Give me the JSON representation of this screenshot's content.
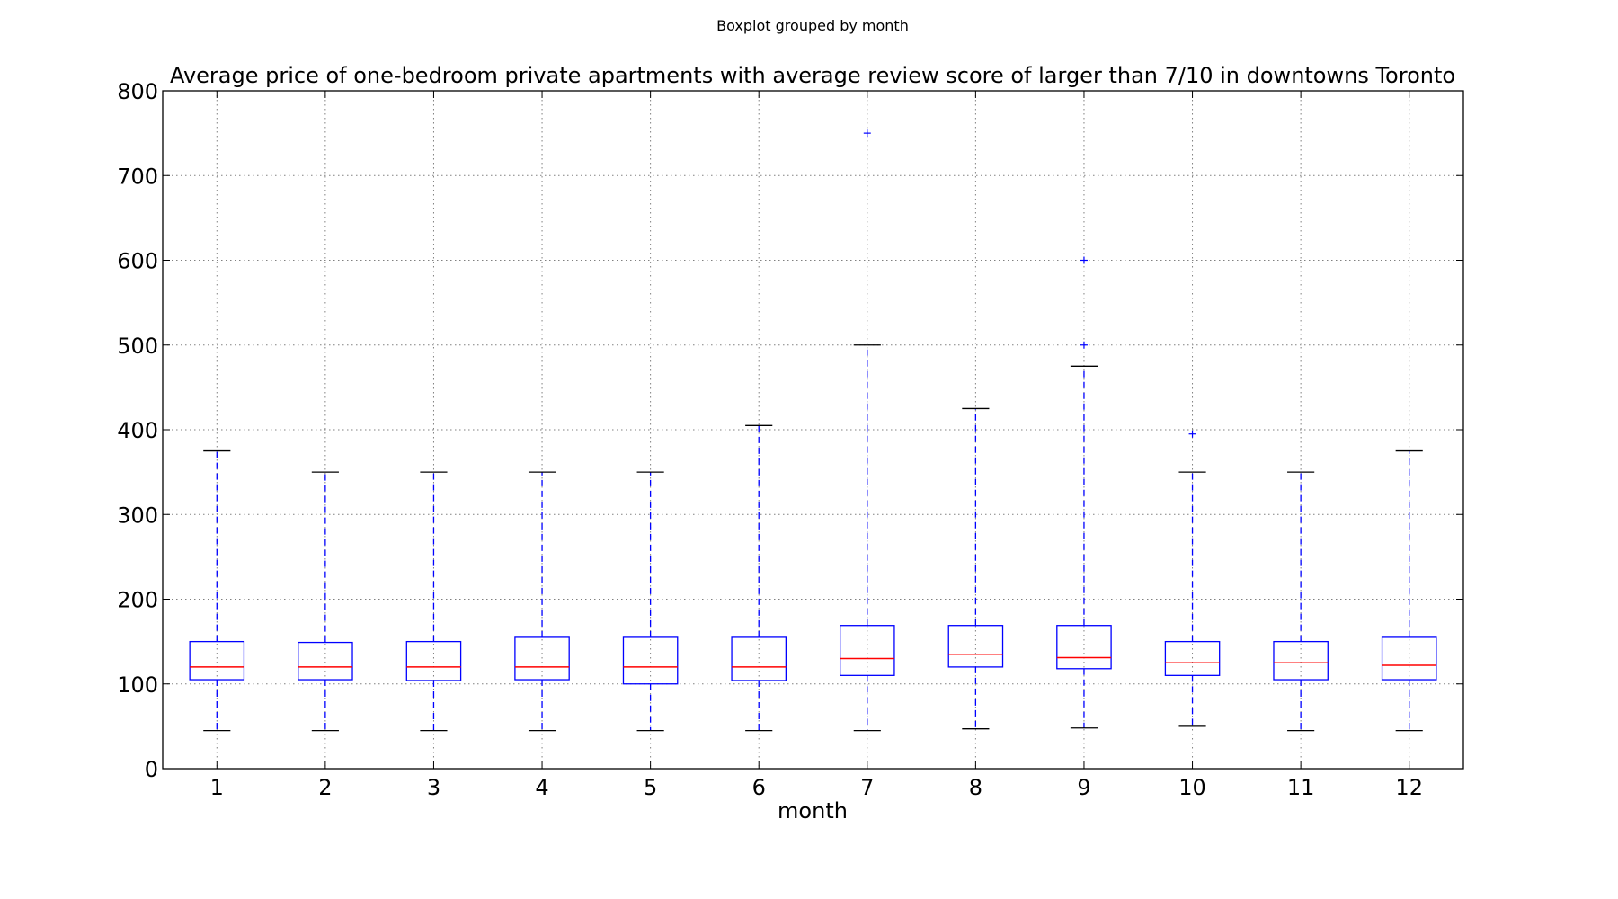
{
  "suptitle": "Boxplot grouped by month",
  "chart_data": {
    "type": "boxplot",
    "title": "Average price of one-bedroom private apartments with average review score of larger than 7/10 in downtowns Toronto",
    "xlabel": "month",
    "ylabel": "",
    "ylim": [
      0,
      800
    ],
    "yticks": [
      0,
      100,
      200,
      300,
      400,
      500,
      600,
      700,
      800
    ],
    "grid": true,
    "categories": [
      "1",
      "2",
      "3",
      "4",
      "5",
      "6",
      "7",
      "8",
      "9",
      "10",
      "11",
      "12"
    ],
    "boxes": [
      {
        "whislo": 45,
        "q1": 105,
        "med": 120,
        "q3": 150,
        "whishi": 375,
        "fliers": []
      },
      {
        "whislo": 45,
        "q1": 105,
        "med": 120,
        "q3": 149,
        "whishi": 350,
        "fliers": []
      },
      {
        "whislo": 45,
        "q1": 104,
        "med": 120,
        "q3": 150,
        "whishi": 350,
        "fliers": []
      },
      {
        "whislo": 45,
        "q1": 105,
        "med": 120,
        "q3": 155,
        "whishi": 350,
        "fliers": []
      },
      {
        "whislo": 45,
        "q1": 100,
        "med": 120,
        "q3": 155,
        "whishi": 350,
        "fliers": []
      },
      {
        "whislo": 45,
        "q1": 104,
        "med": 120,
        "q3": 155,
        "whishi": 405,
        "fliers": []
      },
      {
        "whislo": 45,
        "q1": 110,
        "med": 130,
        "q3": 169,
        "whishi": 500,
        "fliers": [
          750
        ]
      },
      {
        "whislo": 47,
        "q1": 120,
        "med": 135,
        "q3": 169,
        "whishi": 425,
        "fliers": []
      },
      {
        "whislo": 48,
        "q1": 118,
        "med": 131,
        "q3": 169,
        "whishi": 475,
        "fliers": [
          500,
          600
        ]
      },
      {
        "whislo": 50,
        "q1": 110,
        "med": 125,
        "q3": 150,
        "whishi": 350,
        "fliers": [
          395
        ]
      },
      {
        "whislo": 45,
        "q1": 105,
        "med": 125,
        "q3": 150,
        "whishi": 350,
        "fliers": []
      },
      {
        "whislo": 45,
        "q1": 105,
        "med": 122,
        "q3": 155,
        "whishi": 375,
        "fliers": []
      }
    ],
    "colors": {
      "box": "#0000ff",
      "whisker": "#0000ff",
      "cap": "#000000",
      "median": "#ff0000",
      "flier": "#0000ff",
      "grid": "#808080"
    }
  }
}
